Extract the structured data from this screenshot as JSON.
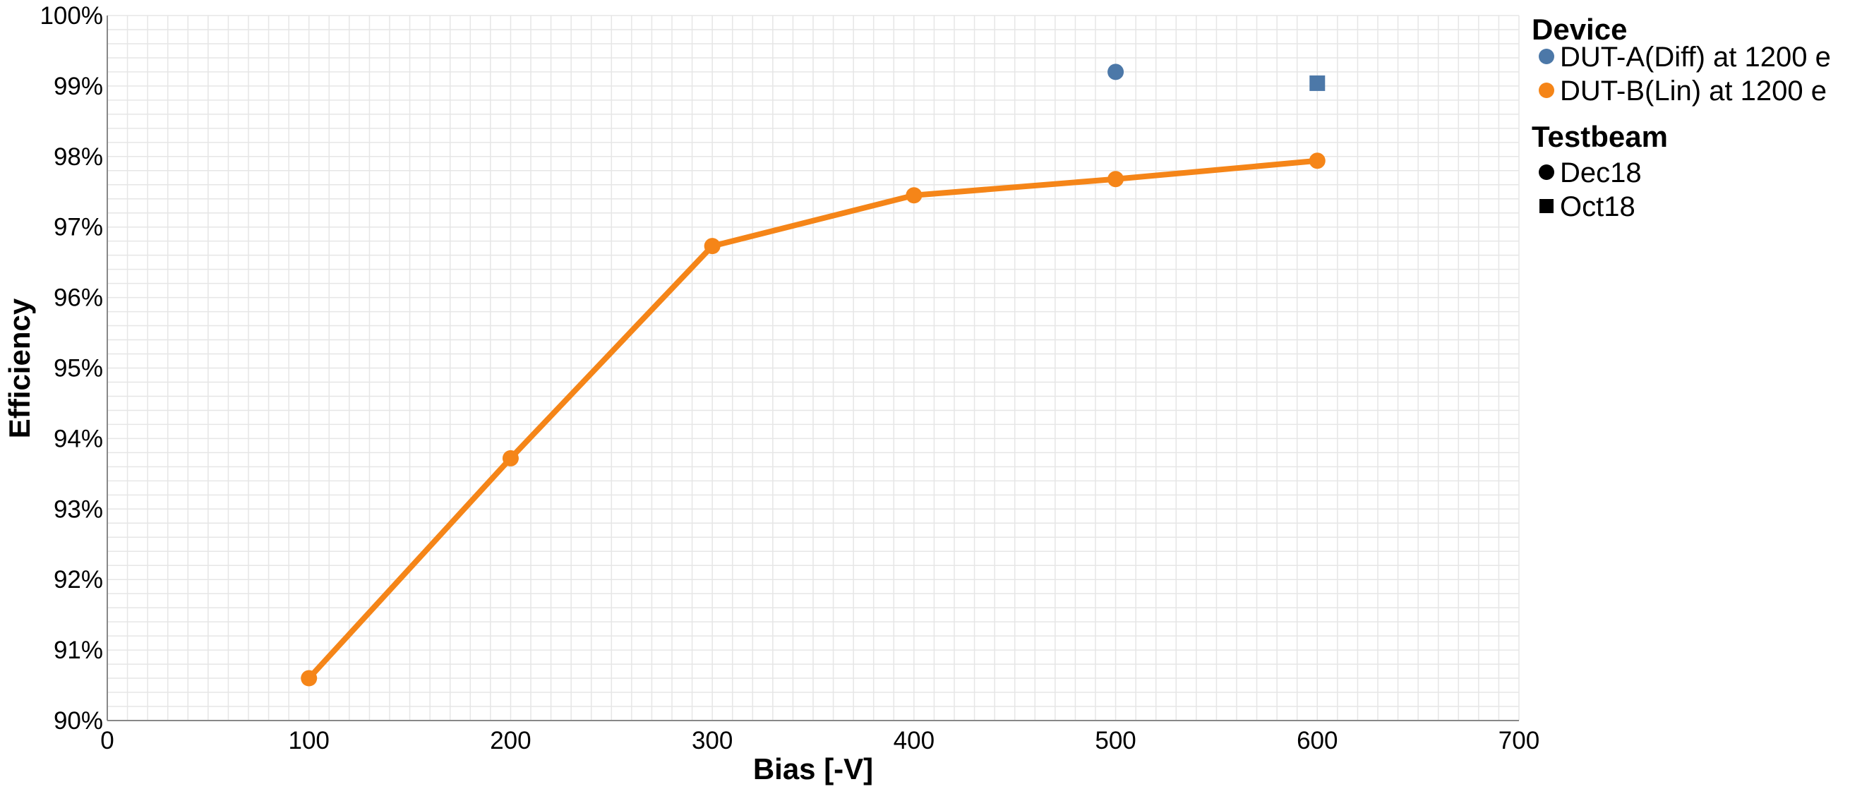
{
  "chart_data": {
    "type": "line",
    "xlabel": "Bias [-V]",
    "ylabel": "Efficiency",
    "xlim": [
      0,
      700
    ],
    "ylim": [
      0.9,
      1.0
    ],
    "x_ticks": [
      0,
      100,
      200,
      300,
      400,
      500,
      600,
      700
    ],
    "y_ticks": [
      "90%",
      "91%",
      "92%",
      "93%",
      "94%",
      "95%",
      "96%",
      "97%",
      "98%",
      "99%",
      "100%"
    ],
    "grid": true,
    "legend_position": "right",
    "series": [
      {
        "name": "DUT-A(Diff) at 1200 e",
        "color": "#4c78a8",
        "line": false,
        "points": [
          {
            "x": 500,
            "y": 0.992,
            "testbeam": "Dec18"
          },
          {
            "x": 600,
            "y": 0.9904,
            "testbeam": "Oct18"
          }
        ]
      },
      {
        "name": "DUT-B(Lin) at 1200 e",
        "color": "#f58518",
        "line": true,
        "points": [
          {
            "x": 100,
            "y": 0.906,
            "testbeam": "Dec18"
          },
          {
            "x": 200,
            "y": 0.9372,
            "testbeam": "Dec18"
          },
          {
            "x": 300,
            "y": 0.9673,
            "testbeam": "Dec18"
          },
          {
            "x": 400,
            "y": 0.9745,
            "testbeam": "Dec18"
          },
          {
            "x": 500,
            "y": 0.9768,
            "testbeam": "Dec18"
          },
          {
            "x": 600,
            "y": 0.9794,
            "testbeam": "Dec18"
          }
        ]
      }
    ],
    "legend": {
      "device_title": "Device",
      "devices": [
        {
          "label": "DUT-A(Diff) at 1200 e",
          "color": "#4c78a8"
        },
        {
          "label": "DUT-B(Lin) at 1200 e",
          "color": "#f58518"
        }
      ],
      "testbeam_title": "Testbeam",
      "testbeams": [
        {
          "label": "Dec18",
          "shape": "circle"
        },
        {
          "label": "Oct18",
          "shape": "square"
        }
      ]
    }
  }
}
